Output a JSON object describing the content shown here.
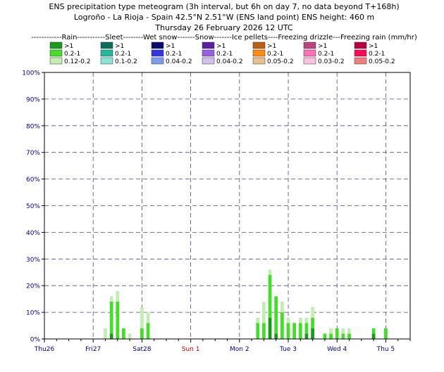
{
  "chart_data": {
    "type": "bar",
    "title_lines": [
      "ENS precipitation type meteogram (3h interval, but 6h on day 7, no data beyond T+168h)",
      "Logroño - La Rioja - Spain 42.5°N 2.51°W (ENS land point) ENS height: 460 m",
      "Thursday 26 February 2026 12 UTC"
    ],
    "legend_header": "------------Rain-----------Sleet--------Wet snow-------Snow-------Ice pellets----Freezing drizzle---Freezing rain (mm/hr)",
    "legend": [
      {
        "group": "Rain",
        "entries": [
          {
            "label": ">1",
            "color": "#1a9a1a"
          },
          {
            "label": "0.2-1",
            "color": "#44dd2a"
          },
          {
            "label": "0.12-0.2",
            "color": "#c4ecb4"
          }
        ]
      },
      {
        "group": "Sleet",
        "entries": [
          {
            "label": ">1",
            "color": "#0e6e5e"
          },
          {
            "label": "0.2-1",
            "color": "#22b89c"
          },
          {
            "label": "0.1-0.2",
            "color": "#88e4d4"
          }
        ]
      },
      {
        "group": "Wet snow",
        "entries": [
          {
            "label": ">1",
            "color": "#0b0b6e"
          },
          {
            "label": "0.2-1",
            "color": "#3535e0"
          },
          {
            "label": "0.04-0.2",
            "color": "#7c9cf0"
          }
        ]
      },
      {
        "group": "Snow",
        "entries": [
          {
            "label": ">1",
            "color": "#5a1ea0"
          },
          {
            "label": "0.2-1",
            "color": "#9860e0"
          },
          {
            "label": "0.04-0.2",
            "color": "#d0c0f0"
          }
        ]
      },
      {
        "group": "Ice pellets",
        "entries": [
          {
            "label": ">1",
            "color": "#b86010"
          },
          {
            "label": "0.2-1",
            "color": "#ff8c10"
          },
          {
            "label": "0.05-0.2",
            "color": "#e8c090"
          }
        ]
      },
      {
        "group": "Freezing drizzle",
        "entries": [
          {
            "label": ">1",
            "color": "#b84480"
          },
          {
            "label": "0.2-1",
            "color": "#ff70b8"
          },
          {
            "label": "0.03-0.2",
            "color": "#ffc0e0"
          }
        ]
      },
      {
        "group": "Freezing rain",
        "entries": [
          {
            "label": ">1",
            "color": "#b80040"
          },
          {
            "label": "0.2-1",
            "color": "#ff0858"
          },
          {
            "label": "0.05-0.2",
            "color": "#f08080"
          }
        ]
      }
    ],
    "y_axis": {
      "min": 0,
      "max": 100,
      "step": 10,
      "unit": "%"
    },
    "x_axis": {
      "start_hour": 0,
      "end_hour": 180,
      "day_labels": [
        {
          "label": "Thu26",
          "hour": 0,
          "color": "#000080"
        },
        {
          "label": "Fri27",
          "hour": 24,
          "color": "#000080"
        },
        {
          "label": "Sat28",
          "hour": 48,
          "color": "#000080"
        },
        {
          "label": "Sun 1",
          "hour": 72,
          "color": "#cc0000"
        },
        {
          "label": "Mon 2",
          "hour": 96,
          "color": "#000080"
        },
        {
          "label": "Tue 3",
          "hour": 120,
          "color": "#000080"
        },
        {
          "label": "Wed 4",
          "hour": 144,
          "color": "#000080"
        },
        {
          "label": "Thu 5",
          "hour": 168,
          "color": "#000080"
        }
      ]
    },
    "series_order": [
      "rain_heavy",
      "rain_moderate",
      "rain_light"
    ],
    "series_colors": {
      "rain_heavy": "#1a9a1a",
      "rain_moderate": "#44dd2a",
      "rain_light": "#c4ecb4"
    },
    "bars": [
      {
        "hour": 30,
        "rain_heavy": 0,
        "rain_moderate": 0,
        "rain_light": 4
      },
      {
        "hour": 33,
        "rain_heavy": 2,
        "rain_moderate": 12,
        "rain_light": 2
      },
      {
        "hour": 36,
        "rain_heavy": 0,
        "rain_moderate": 14,
        "rain_light": 4
      },
      {
        "hour": 39,
        "rain_heavy": 0,
        "rain_moderate": 4,
        "rain_light": 0
      },
      {
        "hour": 42,
        "rain_heavy": 0,
        "rain_moderate": 0,
        "rain_light": 2
      },
      {
        "hour": 48,
        "rain_heavy": 0,
        "rain_moderate": 4,
        "rain_light": 8
      },
      {
        "hour": 51,
        "rain_heavy": 0,
        "rain_moderate": 6,
        "rain_light": 4
      },
      {
        "hour": 105,
        "rain_heavy": 0,
        "rain_moderate": 6,
        "rain_light": 2
      },
      {
        "hour": 108,
        "rain_heavy": 0,
        "rain_moderate": 6,
        "rain_light": 8
      },
      {
        "hour": 111,
        "rain_heavy": 8,
        "rain_moderate": 16,
        "rain_light": 2
      },
      {
        "hour": 114,
        "rain_heavy": 2,
        "rain_moderate": 14,
        "rain_light": 0
      },
      {
        "hour": 117,
        "rain_heavy": 0,
        "rain_moderate": 10,
        "rain_light": 4
      },
      {
        "hour": 120,
        "rain_heavy": 0,
        "rain_moderate": 6,
        "rain_light": 2
      },
      {
        "hour": 123,
        "rain_heavy": 0,
        "rain_moderate": 6,
        "rain_light": 0
      },
      {
        "hour": 126,
        "rain_heavy": 0,
        "rain_moderate": 6,
        "rain_light": 2
      },
      {
        "hour": 129,
        "rain_heavy": 2,
        "rain_moderate": 4,
        "rain_light": 2
      },
      {
        "hour": 132,
        "rain_heavy": 4,
        "rain_moderate": 4,
        "rain_light": 4
      },
      {
        "hour": 138,
        "rain_heavy": 0,
        "rain_moderate": 2,
        "rain_light": 0
      },
      {
        "hour": 141,
        "rain_heavy": 0,
        "rain_moderate": 2,
        "rain_light": 2
      },
      {
        "hour": 144,
        "rain_heavy": 0,
        "rain_moderate": 4,
        "rain_light": 0
      },
      {
        "hour": 147,
        "rain_heavy": 0,
        "rain_moderate": 2,
        "rain_light": 2
      },
      {
        "hour": 150,
        "rain_heavy": 0,
        "rain_moderate": 2,
        "rain_light": 2
      },
      {
        "hour": 162,
        "rain_heavy": 2,
        "rain_moderate": 2,
        "rain_light": 0
      },
      {
        "hour": 168,
        "rain_heavy": 0,
        "rain_moderate": 4,
        "rain_light": 0
      }
    ]
  }
}
